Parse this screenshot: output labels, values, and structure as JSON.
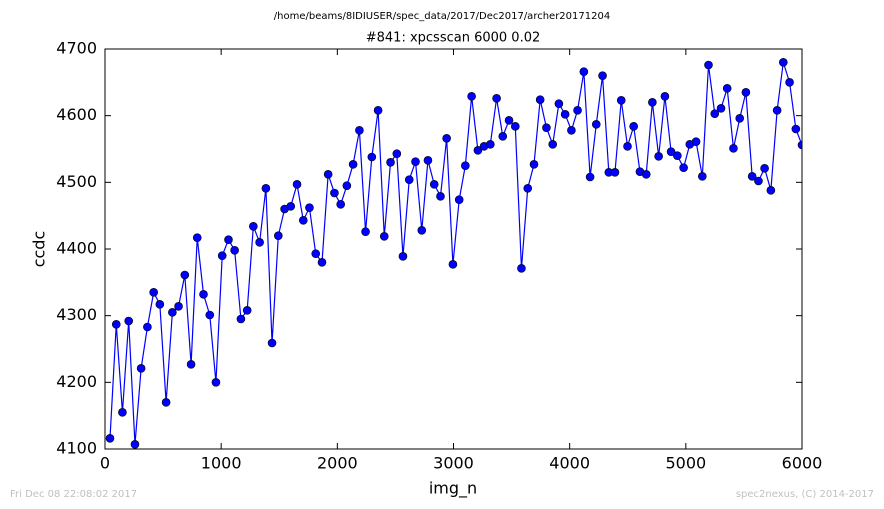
{
  "chart_data": {
    "type": "line",
    "header": "/home/beams/8IDIUSER/spec_data/2017/Dec2017/archer20171204",
    "title": "#841: xpcsscan 6000 0.02",
    "x_label": "img_n",
    "y_label": "ccdc",
    "footer_left": "Fri Dec 08 22:08:02 2017",
    "footer_right": "spec2nexus, (C) 2014-2017",
    "xlim": [
      0,
      6000
    ],
    "xticks": [
      0,
      1000,
      2000,
      3000,
      4000,
      5000,
      6000
    ],
    "ylim": [
      4100,
      4700
    ],
    "yticks": [
      4100,
      4200,
      4300,
      4400,
      4500,
      4600,
      4700
    ],
    "x": [
      43,
      97,
      150,
      204,
      258,
      311,
      365,
      419,
      472,
      526,
      580,
      633,
      687,
      741,
      794,
      848,
      902,
      955,
      1009,
      1063,
      1116,
      1170,
      1224,
      1277,
      1331,
      1385,
      1438,
      1492,
      1546,
      1599,
      1653,
      1707,
      1760,
      1814,
      1868,
      1921,
      1975,
      2029,
      2082,
      2136,
      2190,
      2243,
      2297,
      2351,
      2404,
      2458,
      2512,
      2565,
      2619,
      2673,
      2727,
      2780,
      2834,
      2888,
      2941,
      2995,
      3049,
      3102,
      3156,
      3210,
      3263,
      3317,
      3371,
      3424,
      3478,
      3532,
      3585,
      3639,
      3693,
      3746,
      3800,
      3854,
      3907,
      3961,
      4015,
      4068,
      4122,
      4176,
      4229,
      4283,
      4337,
      4390,
      4444,
      4498,
      4551,
      4605,
      4659,
      4712,
      4766,
      4820,
      4873,
      4927,
      4981,
      5034,
      5088,
      5142,
      5195,
      5249,
      5303,
      5356,
      5410,
      5464,
      5517,
      5571,
      5625,
      5678,
      5732,
      5786,
      5839,
      5893,
      5947,
      6000
    ],
    "series": [
      {
        "color": "#0000ff",
        "values": [
          4116,
          4287,
          4155,
          4292,
          4107,
          4221,
          4283,
          4335,
          4317,
          4170,
          4305,
          4314,
          4361,
          4227,
          4417,
          4332,
          4301,
          4200,
          4390,
          4414,
          4398,
          4295,
          4308,
          4434,
          4410,
          4491,
          4259,
          4420,
          4460,
          4464,
          4497,
          4443,
          4462,
          4393,
          4380,
          4512,
          4484,
          4467,
          4495,
          4527,
          4578,
          4426,
          4538,
          4608,
          4419,
          4530,
          4543,
          4389,
          4504,
          4531,
          4428,
          4533,
          4497,
          4479,
          4566,
          4377,
          4474,
          4525,
          4629,
          4548,
          4554,
          4557,
          4626,
          4569,
          4593,
          4584,
          4371,
          4491,
          4527,
          4624,
          4582,
          4557,
          4618,
          4602,
          4578,
          4608,
          4666,
          4508,
          4587,
          4660,
          4515,
          4515,
          4623,
          4554,
          4584,
          4516,
          4512,
          4620,
          4539,
          4629,
          4546,
          4540,
          4522,
          4557,
          4561,
          4509,
          4676,
          4603,
          4611,
          4641,
          4551,
          4596,
          4635,
          4509,
          4502,
          4521,
          4488,
          4608,
          4680,
          4650,
          4580,
          4556
        ]
      }
    ]
  }
}
